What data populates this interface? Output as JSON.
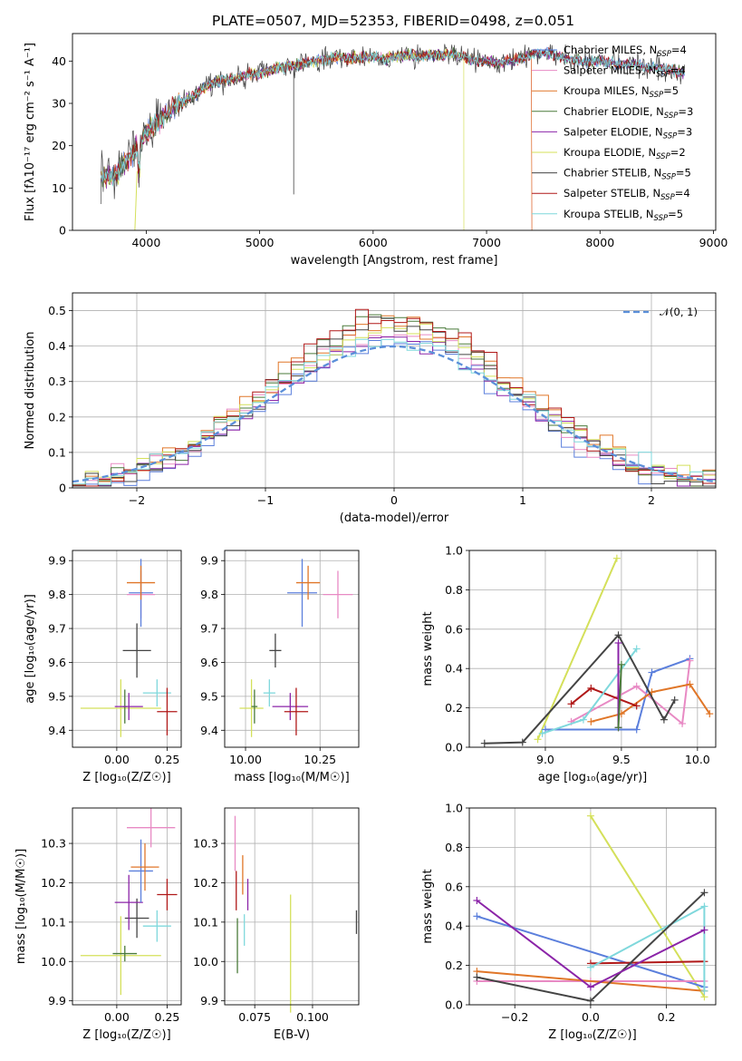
{
  "title": "PLATE=0507, MJD=52353, FIBERID=0498, z=0.051",
  "colors": {
    "Chabrier MILES": "#5b7fdc",
    "Salpeter MILES": "#e88ac4",
    "Kroupa MILES": "#e07628",
    "Chabrier ELODIE": "#4a7a3a",
    "Salpeter ELODIE": "#8b24a8",
    "Kroupa ELODIE": "#d4e05a",
    "Chabrier STELIB": "#444444",
    "Salpeter STELIB": "#b01818",
    "Kroupa STELIB": "#7fd8dc"
  },
  "chart_data": [
    {
      "type": "line",
      "xlabel": "wavelength [Angstrom, rest frame]",
      "ylabel": "Flux [fλ10⁻¹⁷ erg cm⁻² s⁻¹ A⁻¹]",
      "xlim": [
        3350,
        9020
      ],
      "ylim": [
        0,
        46.5
      ],
      "xticks": [
        4000,
        5000,
        6000,
        7000,
        8000,
        9000
      ],
      "yticks": [
        0,
        10,
        20,
        30,
        40
      ],
      "legend_position": "top-right",
      "legend": [
        {
          "name": "Chabrier MILES",
          "label": "Chabrier MILES, N",
          "sub": "SSP",
          "n": "=4"
        },
        {
          "name": "Salpeter MILES",
          "label": "Salpeter MILES, N",
          "sub": "SSP",
          "n": "=4"
        },
        {
          "name": "Kroupa MILES",
          "label": "Kroupa MILES, N",
          "sub": "SSP",
          "n": "=5"
        },
        {
          "name": "Chabrier ELODIE",
          "label": "Chabrier ELODIE, N",
          "sub": "SSP",
          "n": "=3"
        },
        {
          "name": "Salpeter ELODIE",
          "label": "Salpeter ELODIE, N",
          "sub": "SSP",
          "n": "=3"
        },
        {
          "name": "Kroupa ELODIE",
          "label": "Kroupa ELODIE, N",
          "sub": "SSP",
          "n": "=2"
        },
        {
          "name": "Chabrier STELIB",
          "label": "Chabrier STELIB, N",
          "sub": "SSP",
          "n": "=5"
        },
        {
          "name": "Salpeter STELIB",
          "label": "Salpeter STELIB, N",
          "sub": "SSP",
          "n": "=4"
        },
        {
          "name": "Kroupa STELIB",
          "label": "Kroupa STELIB, N",
          "sub": "SSP",
          "n": "=5"
        }
      ],
      "spectrum_range": [
        3600,
        8750
      ],
      "continuum": [
        [
          3600,
          13
        ],
        [
          3700,
          12.5
        ],
        [
          3800,
          15.5
        ],
        [
          3900,
          19
        ],
        [
          4000,
          23
        ],
        [
          4100,
          25.5
        ],
        [
          4200,
          28
        ],
        [
          4300,
          30
        ],
        [
          4400,
          31.5
        ],
        [
          4500,
          33.5
        ],
        [
          4600,
          35
        ],
        [
          4700,
          35.5
        ],
        [
          4800,
          36
        ],
        [
          4900,
          37
        ],
        [
          5000,
          37
        ],
        [
          5100,
          38
        ],
        [
          5200,
          38.5
        ],
        [
          5300,
          39
        ],
        [
          5400,
          39.5
        ],
        [
          5500,
          40
        ],
        [
          5600,
          40.5
        ],
        [
          5700,
          41
        ],
        [
          5800,
          40.5
        ],
        [
          5900,
          41
        ],
        [
          6000,
          41
        ],
        [
          6100,
          40.5
        ],
        [
          6200,
          41
        ],
        [
          6300,
          41.5
        ],
        [
          6400,
          41
        ],
        [
          6500,
          41.5
        ],
        [
          6600,
          41.5
        ],
        [
          6700,
          41.5
        ],
        [
          6800,
          41
        ],
        [
          6900,
          40
        ],
        [
          7000,
          40
        ],
        [
          7100,
          39.5
        ],
        [
          7200,
          40
        ],
        [
          7300,
          40.5
        ],
        [
          7400,
          41.5
        ],
        [
          7500,
          42
        ],
        [
          7600,
          41.5
        ],
        [
          7700,
          40.5
        ],
        [
          7800,
          40.5
        ],
        [
          7900,
          39.5
        ],
        [
          8000,
          40
        ],
        [
          8100,
          39.5
        ],
        [
          8200,
          39
        ],
        [
          8300,
          39.5
        ],
        [
          8400,
          38.5
        ],
        [
          8500,
          38.5
        ],
        [
          8600,
          38
        ],
        [
          8700,
          37.5
        ],
        [
          8750,
          37.5
        ]
      ],
      "model_cutoffs": [
        {
          "name": "Kroupa ELODIE",
          "from": 3600,
          "to": 6800
        },
        {
          "name": "Kroupa MILES",
          "from": 3600,
          "to": 7400
        },
        {
          "name": "Salpeter MILES",
          "from": 3600,
          "to": 7400
        }
      ]
    },
    {
      "type": "histogram",
      "xlabel": "(data-model)/error",
      "ylabel": "Normed distribution",
      "xlim": [
        -2.5,
        2.5
      ],
      "ylim": [
        0,
        0.55
      ],
      "xticks": [
        -2,
        -1,
        0,
        1,
        2
      ],
      "yticks": [
        0.0,
        0.1,
        0.2,
        0.3,
        0.4,
        0.5
      ],
      "bin_width": 0.1,
      "reference": {
        "label": "𝒩(0, 1)",
        "color": "#5b8fd9"
      },
      "legend_position": "top-right"
    },
    {
      "type": "errorbar",
      "xlabel": "Z [log₁₀(Z/Z☉)]",
      "ylabel": "age  [log₁₀(age/yr)]",
      "xlim": [
        -0.22,
        0.32
      ],
      "ylim": [
        9.35,
        9.93
      ],
      "xticks": [
        "0.00",
        "0.25"
      ],
      "xtick_values": [
        0,
        0.25
      ],
      "yticks": [
        "9.4",
        "9.5",
        "9.6",
        "9.7",
        "9.8",
        "9.9"
      ],
      "ytick_values": [
        9.4,
        9.5,
        9.6,
        9.7,
        9.8,
        9.9
      ],
      "points": [
        {
          "name": "Kroupa ELODIE",
          "x": 0.02,
          "xerr": 0.2,
          "y": 9.465,
          "yerr": 0.085
        },
        {
          "name": "Chabrier ELODIE",
          "x": 0.04,
          "xerr": 0.01,
          "y": 9.47,
          "yerr": 0.05
        },
        {
          "name": "Salpeter ELODIE",
          "x": 0.06,
          "xerr": 0.07,
          "y": 9.47,
          "yerr": 0.04
        },
        {
          "name": "Chabrier STELIB",
          "x": 0.1,
          "xerr": 0.07,
          "y": 9.635,
          "yerr": 0.08
        },
        {
          "name": "Salpeter MILES",
          "x": 0.12,
          "xerr": 0.07,
          "y": 9.8,
          "yerr": 0.07
        },
        {
          "name": "Chabrier MILES",
          "x": 0.12,
          "xerr": 0.06,
          "y": 9.805,
          "yerr": 0.1
        },
        {
          "name": "Kroupa MILES",
          "x": 0.12,
          "xerr": 0.07,
          "y": 9.835,
          "yerr": 0.05
        },
        {
          "name": "Kroupa STELIB",
          "x": 0.2,
          "xerr": 0.07,
          "y": 9.51,
          "yerr": 0.04
        },
        {
          "name": "Salpeter STELIB",
          "x": 0.25,
          "xerr": 0.05,
          "y": 9.455,
          "yerr": 0.07
        }
      ]
    },
    {
      "type": "errorbar",
      "xlabel": "mass [log₁₀(M/M☉)]",
      "ylabel": "",
      "xlim": [
        9.93,
        10.38
      ],
      "ylim": [
        9.35,
        9.93
      ],
      "xticks": [
        "10.00",
        "10.25"
      ],
      "xtick_values": [
        10.0,
        10.25
      ],
      "yticks": [
        "9.4",
        "9.5",
        "9.6",
        "9.7",
        "9.8",
        "9.9"
      ],
      "ytick_values": [
        9.4,
        9.5,
        9.6,
        9.7,
        9.8,
        9.9
      ],
      "points": [
        {
          "name": "Kroupa ELODIE",
          "x": 10.02,
          "xerr": 0.04,
          "y": 9.465,
          "yerr": 0.085
        },
        {
          "name": "Chabrier ELODIE",
          "x": 10.03,
          "xerr": 0.01,
          "y": 9.47,
          "yerr": 0.05
        },
        {
          "name": "Salpeter ELODIE",
          "x": 10.15,
          "xerr": 0.06,
          "y": 9.47,
          "yerr": 0.04
        },
        {
          "name": "Chabrier STELIB",
          "x": 10.1,
          "xerr": 0.02,
          "y": 9.635,
          "yerr": 0.05
        },
        {
          "name": "Salpeter MILES",
          "x": 10.31,
          "xerr": 0.05,
          "y": 9.8,
          "yerr": 0.07
        },
        {
          "name": "Chabrier MILES",
          "x": 10.19,
          "xerr": 0.05,
          "y": 9.805,
          "yerr": 0.1
        },
        {
          "name": "Kroupa MILES",
          "x": 10.21,
          "xerr": 0.04,
          "y": 9.835,
          "yerr": 0.05
        },
        {
          "name": "Kroupa STELIB",
          "x": 10.08,
          "xerr": 0.02,
          "y": 9.51,
          "yerr": 0.04
        },
        {
          "name": "Salpeter STELIB",
          "x": 10.17,
          "xerr": 0.04,
          "y": 9.455,
          "yerr": 0.07
        }
      ]
    },
    {
      "type": "line",
      "xlabel": "age  [log₁₀(age/yr)]",
      "ylabel": "mass weight",
      "xlim": [
        8.5,
        10.12
      ],
      "ylim": [
        0,
        1.0
      ],
      "xticks": [
        "9.0",
        "9.5",
        "10.0"
      ],
      "xtick_values": [
        9.0,
        9.5,
        10.0
      ],
      "yticks": [
        "0.0",
        "0.2",
        "0.4",
        "0.6",
        "0.8",
        "1.0"
      ],
      "ytick_values": [
        0,
        0.2,
        0.4,
        0.6,
        0.8,
        1.0
      ],
      "series": [
        {
          "name": "Kroupa ELODIE",
          "x": [
            8.95,
            9.47
          ],
          "y": [
            0.04,
            0.96
          ]
        },
        {
          "name": "Chabrier MILES",
          "x": [
            9.0,
            9.6,
            9.7,
            9.95
          ],
          "y": [
            0.09,
            0.09,
            0.38,
            0.45
          ]
        },
        {
          "name": "Salpeter MILES",
          "x": [
            9.17,
            9.6,
            9.9,
            9.95
          ],
          "y": [
            0.13,
            0.31,
            0.12,
            0.44
          ]
        },
        {
          "name": "Kroupa MILES",
          "x": [
            9.3,
            9.5,
            9.7,
            9.95,
            10.08
          ],
          "y": [
            0.13,
            0.17,
            0.28,
            0.32,
            0.17
          ]
        },
        {
          "name": "Salpeter STELIB",
          "x": [
            9.17,
            9.3,
            9.6
          ],
          "y": [
            0.22,
            0.3,
            0.21
          ]
        },
        {
          "name": "Kroupa STELIB",
          "x": [
            8.98,
            9.25,
            9.6
          ],
          "y": [
            0.07,
            0.14,
            0.5
          ]
        },
        {
          "name": "Chabrier STELIB",
          "x": [
            8.6,
            8.85,
            9.48,
            9.78,
            9.85
          ],
          "y": [
            0.02,
            0.025,
            0.57,
            0.14,
            0.24
          ]
        },
        {
          "name": "Salpeter ELODIE",
          "x": [
            9.48,
            9.48
          ],
          "y": [
            0.1,
            0.53
          ]
        },
        {
          "name": "Chabrier ELODIE",
          "x": [
            9.48,
            9.5
          ],
          "y": [
            0.1,
            0.42
          ]
        }
      ]
    },
    {
      "type": "errorbar",
      "xlabel": "Z [log₁₀(Z/Z☉)]",
      "ylabel": "mass [log₁₀(M/M☉)]",
      "xlim": [
        -0.22,
        0.32
      ],
      "ylim": [
        9.89,
        10.39
      ],
      "xticks": [
        "0.00",
        "0.25"
      ],
      "xtick_values": [
        0,
        0.25
      ],
      "yticks": [
        "9.9",
        "10.0",
        "10.1",
        "10.2",
        "10.3"
      ],
      "ytick_values": [
        9.9,
        10.0,
        10.1,
        10.2,
        10.3
      ],
      "points": [
        {
          "name": "Kroupa ELODIE",
          "x": 0.02,
          "xerr": 0.2,
          "y": 10.015,
          "yerr": 0.1
        },
        {
          "name": "Chabrier ELODIE",
          "x": 0.04,
          "xerr": 0.06,
          "y": 10.02,
          "yerr": 0.02
        },
        {
          "name": "Chabrier STELIB",
          "x": 0.1,
          "xerr": 0.06,
          "y": 10.11,
          "yerr": 0.05
        },
        {
          "name": "Salpeter ELODIE",
          "x": 0.06,
          "xerr": 0.07,
          "y": 10.15,
          "yerr": 0.07
        },
        {
          "name": "Salpeter MILES",
          "x": 0.17,
          "xerr": 0.12,
          "y": 10.34,
          "yerr": 0.05
        },
        {
          "name": "Chabrier MILES",
          "x": 0.12,
          "xerr": 0.06,
          "y": 10.23,
          "yerr": 0.08
        },
        {
          "name": "Kroupa MILES",
          "x": 0.14,
          "xerr": 0.07,
          "y": 10.24,
          "yerr": 0.06
        },
        {
          "name": "Kroupa STELIB",
          "x": 0.2,
          "xerr": 0.07,
          "y": 10.09,
          "yerr": 0.04
        },
        {
          "name": "Salpeter STELIB",
          "x": 0.25,
          "xerr": 0.05,
          "y": 10.17,
          "yerr": 0.04
        }
      ]
    },
    {
      "type": "errorbar",
      "xlabel": "E(B-V)",
      "ylabel": "",
      "xlim": [
        0.062,
        0.12
      ],
      "ylim": [
        9.89,
        10.39
      ],
      "xticks": [
        "0.075",
        "0.100"
      ],
      "xtick_values": [
        0.075,
        0.1
      ],
      "yticks": [
        "9.9",
        "10.0",
        "10.1",
        "10.2",
        "10.3"
      ],
      "ytick_values": [
        9.9,
        10.0,
        10.1,
        10.2,
        10.3
      ],
      "points": [
        {
          "name": "Salpeter MILES",
          "x": 0.0665,
          "y": 10.3,
          "yerr": 0.07
        },
        {
          "name": "Salpeter STELIB",
          "x": 0.067,
          "y": 10.18,
          "yerr": 0.05
        },
        {
          "name": "Chabrier ELODIE",
          "x": 0.0675,
          "y": 10.04,
          "yerr": 0.07
        },
        {
          "name": "Kroupa MILES",
          "x": 0.0698,
          "y": 10.22,
          "yerr": 0.05
        },
        {
          "name": "Kroupa STELIB",
          "x": 0.0705,
          "y": 10.08,
          "yerr": 0.04
        },
        {
          "name": "Salpeter ELODIE",
          "x": 0.072,
          "y": 10.17,
          "yerr": 0.04
        },
        {
          "name": "Kroupa ELODIE",
          "x": 0.0905,
          "y": 10.02,
          "yerr": 0.15
        },
        {
          "name": "Chabrier STELIB",
          "x": 0.119,
          "y": 10.1,
          "yerr": 0.03
        }
      ]
    },
    {
      "type": "line",
      "xlabel": "Z [log₁₀(Z/Z☉)]",
      "ylabel": "mass weight",
      "xlim": [
        -0.32,
        0.33
      ],
      "ylim": [
        0,
        1.0
      ],
      "xticks": [
        "−0.2",
        "0.0",
        "0.2"
      ],
      "xtick_values": [
        -0.2,
        0.0,
        0.2
      ],
      "yticks": [
        "0.0",
        "0.2",
        "0.4",
        "0.6",
        "0.8",
        "1.0"
      ],
      "ytick_values": [
        0,
        0.2,
        0.4,
        0.6,
        0.8,
        1.0
      ],
      "series": [
        {
          "name": "Kroupa ELODIE",
          "x": [
            0.0,
            0.3
          ],
          "y": [
            0.96,
            0.04
          ]
        },
        {
          "name": "Chabrier MILES",
          "x": [
            -0.3,
            0.3
          ],
          "y": [
            0.45,
            0.09
          ]
        },
        {
          "name": "Salpeter MILES",
          "x": [
            -0.3,
            0.0,
            0.3
          ],
          "y": [
            0.12,
            0.12,
            0.12
          ]
        },
        {
          "name": "Kroupa MILES",
          "x": [
            -0.3,
            0.3
          ],
          "y": [
            0.17,
            0.07
          ]
        },
        {
          "name": "Salpeter STELIB",
          "x": [
            0.0,
            0.3
          ],
          "y": [
            0.21,
            0.22
          ]
        },
        {
          "name": "Kroupa STELIB",
          "x": [
            0.0,
            0.3,
            0.3
          ],
          "y": [
            0.19,
            0.5,
            0.07
          ]
        },
        {
          "name": "Chabrier STELIB",
          "x": [
            -0.3,
            0.0,
            0.3
          ],
          "y": [
            0.14,
            0.02,
            0.57
          ]
        },
        {
          "name": "Salpeter ELODIE",
          "x": [
            -0.3,
            0.0,
            0.3
          ],
          "y": [
            0.53,
            0.09,
            0.38
          ]
        }
      ]
    }
  ]
}
